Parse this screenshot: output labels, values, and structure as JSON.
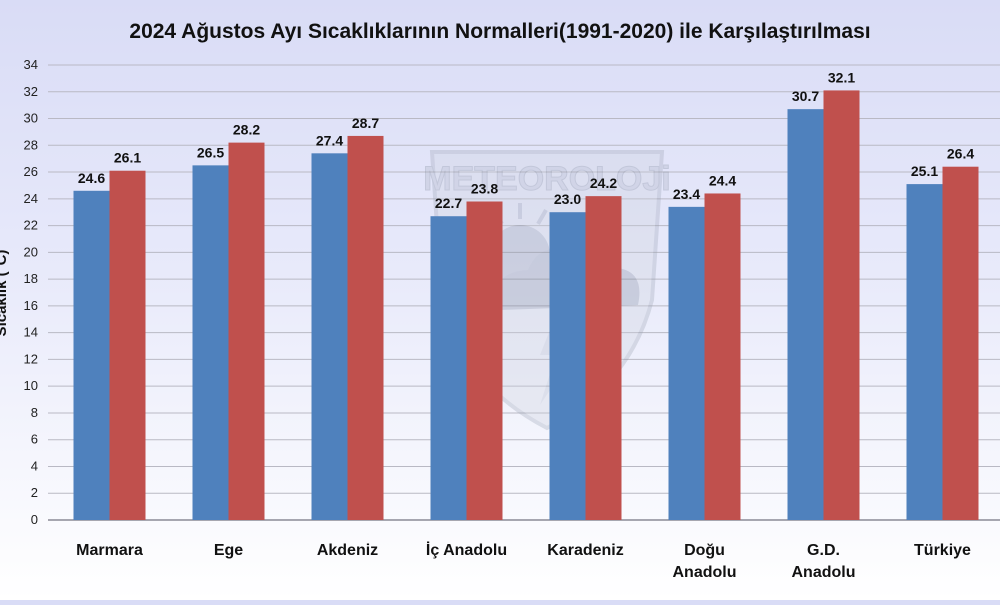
{
  "chart_data": {
    "type": "bar",
    "title": "2024 Ağustos Ayı Sıcaklıklarının Normalleri(1991-2020) ile Karşılaştırılması",
    "ylabel": "Sıcaklık (°C)",
    "xlabel": "",
    "ylim": [
      0,
      34
    ],
    "yticks": [
      0,
      2,
      4,
      6,
      8,
      10,
      12,
      14,
      16,
      18,
      20,
      22,
      24,
      26,
      28,
      30,
      32,
      34
    ],
    "grid": true,
    "categories": [
      [
        "Marmara"
      ],
      [
        "Ege"
      ],
      [
        "Akdeniz"
      ],
      [
        "İç Anadolu"
      ],
      [
        "Karadeniz"
      ],
      [
        "Doğu",
        "Anadolu"
      ],
      [
        "G.D.",
        "Anadolu"
      ],
      [
        "Türkiye"
      ]
    ],
    "series": [
      {
        "color": "#4f81bd",
        "values": [
          24.6,
          26.5,
          27.4,
          22.7,
          23.0,
          23.4,
          30.7,
          25.1
        ]
      },
      {
        "color": "#c0504d",
        "values": [
          26.1,
          28.2,
          28.7,
          23.8,
          24.2,
          24.4,
          32.1,
          26.4
        ]
      }
    ],
    "watermark": "METEOROLOJi"
  }
}
